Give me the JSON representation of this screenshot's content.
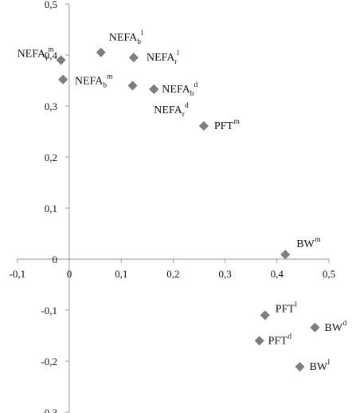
{
  "chart_data": {
    "type": "scatter",
    "xlim": [
      -0.1,
      0.5
    ],
    "ylim": [
      -0.3,
      0.5
    ],
    "grid": false,
    "legend": "none",
    "marker_color": "#7f7f7f",
    "x_ticks": [
      "-0,1",
      "0",
      "0,1",
      "0,2",
      "0,3",
      "0,4",
      "0,5"
    ],
    "y_ticks": [
      "-0,3",
      "-0,2",
      "-0,1",
      "0",
      "0,1",
      "0,2",
      "0,3",
      "0,4",
      "0,5"
    ],
    "points": [
      {
        "base": "NEFA",
        "sub": "r",
        "sup": "m",
        "x": -0.016,
        "y": 0.39
      },
      {
        "base": "NEFA",
        "sub": "",
        "sup": "",
        "x": -0.012,
        "y": 0.352
      },
      {
        "base": "NEFA",
        "sub": "b",
        "sup": "l",
        "x": 0.061,
        "y": 0.405
      },
      {
        "base": "NEFA",
        "sub": "r",
        "sup": "l",
        "x": 0.124,
        "y": 0.395
      },
      {
        "base": "NEFA",
        "sub": "b",
        "sup": "m",
        "x": 0.122,
        "y": 0.34
      },
      {
        "base": "NEFA",
        "sub": "b",
        "sup": "d",
        "x": 0.163,
        "y": 0.333
      },
      {
        "base": "NEFA",
        "sub": "r",
        "sup": "d",
        "x": 0.163,
        "y": 0.333
      },
      {
        "base": "PFT",
        "sub": "",
        "sup": "m",
        "x": 0.259,
        "y": 0.261
      },
      {
        "base": "BW",
        "sub": "",
        "sup": "m",
        "x": 0.416,
        "y": 0.009
      },
      {
        "base": "PFT",
        "sub": "",
        "sup": "l",
        "x": 0.377,
        "y": -0.11
      },
      {
        "base": "BW",
        "sub": "",
        "sup": "d",
        "x": 0.473,
        "y": -0.134
      },
      {
        "base": "PFT",
        "sub": "",
        "sup": "d",
        "x": 0.366,
        "y": -0.16
      },
      {
        "base": "BW",
        "sub": "",
        "sup": "l",
        "x": 0.444,
        "y": -0.211
      }
    ]
  }
}
